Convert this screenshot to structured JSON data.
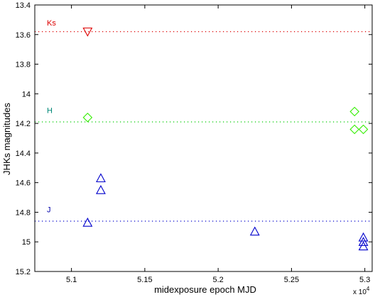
{
  "chart_data": {
    "type": "scatter",
    "title": "",
    "xlabel": "midexposure epoch MJD",
    "ylabel": "JHKs magnitudes",
    "x_multiplier_label": "x 10",
    "x_multiplier_exponent": "4",
    "xlim": [
      5.075,
      5.305
    ],
    "ylim": [
      15.2,
      13.4
    ],
    "y_inverted": true,
    "grid": false,
    "x_ticks": [
      5.1,
      5.15,
      5.2,
      5.25,
      5.3
    ],
    "x_tick_labels": [
      "5.1",
      "5.15",
      "5.2",
      "5.25",
      "5.3"
    ],
    "y_ticks": [
      13.4,
      13.6,
      13.8,
      14,
      14.2,
      14.4,
      14.6,
      14.8,
      15,
      15.2
    ],
    "y_tick_labels": [
      "13.4",
      "13.6",
      "13.8",
      "14",
      "14.2",
      "14.4",
      "14.6",
      "14.8",
      "15",
      "15.2"
    ],
    "reference_lines": [
      {
        "band": "Ks",
        "y": 13.58,
        "color": "#dd0000"
      },
      {
        "band": "H",
        "y": 14.19,
        "color": "#00cc00"
      },
      {
        "band": "J",
        "y": 14.86,
        "color": "#0000cc"
      }
    ],
    "series": [
      {
        "name": "Ks",
        "marker": "triangle-down",
        "color": "#dd0000",
        "x": [
          5.111
        ],
        "y": [
          13.58
        ]
      },
      {
        "name": "H",
        "marker": "diamond",
        "color": "#33ee00",
        "x": [
          5.111,
          5.293,
          5.293,
          5.299
        ],
        "y": [
          14.16,
          14.12,
          14.24,
          14.24
        ]
      },
      {
        "name": "J",
        "marker": "triangle-up",
        "color": "#0000cc",
        "x": [
          5.111,
          5.12,
          5.12,
          5.225,
          5.299,
          5.299,
          5.299
        ],
        "y": [
          14.87,
          14.57,
          14.65,
          14.93,
          14.97,
          15.0,
          15.03
        ]
      }
    ],
    "band_labels": [
      {
        "text": "Ks",
        "color": "#dd0000",
        "y": 13.52
      },
      {
        "text": "H",
        "color": "#008877",
        "y": 14.11
      },
      {
        "text": "J",
        "color": "#0000aa",
        "y": 14.78
      }
    ]
  }
}
